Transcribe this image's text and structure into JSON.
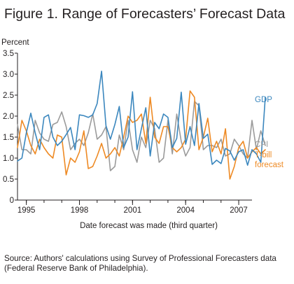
{
  "figure": {
    "title": "Figure 1. Range of Forecasters’ Forecast Data",
    "source": "Source: Authors' calculations using Survey of Professional Forecasters data (Federal Reserve Bank of Philadelphia)."
  },
  "chart_data": {
    "type": "line",
    "ylabel": "Percent",
    "xlabel": "Date forecast was made (third quarter)",
    "ylim": [
      0,
      3.5
    ],
    "yticks": [
      "0",
      "0.5",
      "1.0",
      "1.5",
      "2.0",
      "2.5",
      "3.0",
      "3.5"
    ],
    "xlim": [
      1994.5,
      2007.75
    ],
    "xticks": [
      "1995",
      "1998",
      "2001",
      "2004",
      "2007"
    ],
    "grid": false,
    "legend": "labels at line ends, right",
    "series": [
      {
        "name": "GDP",
        "label_lines": [
          "GDP"
        ],
        "color": "#3b87be",
        "x_start": 1994.5,
        "x_step": 0.25,
        "values": [
          0.93,
          1.0,
          1.6,
          2.07,
          1.6,
          1.2,
          1.97,
          2.03,
          1.5,
          1.3,
          1.4,
          1.56,
          1.73,
          1.2,
          2.03,
          2.01,
          1.97,
          2.03,
          2.3,
          3.07,
          1.77,
          1.45,
          1.8,
          2.23,
          1.25,
          1.5,
          2.58,
          1.2,
          1.7,
          2.2,
          1.05,
          1.85,
          1.7,
          2.05,
          1.97,
          1.25,
          1.47,
          2.57,
          1.33,
          1.75,
          1.3,
          2.3,
          1.47,
          1.57,
          0.85,
          0.95,
          0.87,
          1.23,
          1.17,
          0.95,
          1.15,
          1.2,
          0.83,
          1.2,
          1.1,
          0.9,
          2.45
        ]
      },
      {
        "name": "CPI",
        "label_lines": [
          "CPI"
        ],
        "color": "#9b9b9b",
        "x_start": 1994.5,
        "x_step": 0.25,
        "values": [
          1.8,
          1.2,
          1.2,
          1.1,
          1.9,
          1.6,
          1.45,
          1.4,
          1.8,
          1.85,
          2.1,
          1.75,
          1.2,
          1.35,
          1.45,
          1.3,
          1.6,
          2.05,
          1.45,
          1.55,
          1.75,
          0.7,
          0.8,
          1.55,
          1.2,
          1.9,
          1.2,
          0.9,
          1.5,
          1.25,
          1.9,
          1.7,
          0.9,
          1.0,
          1.9,
          1.1,
          2.05,
          1.4,
          1.05,
          1.25,
          2.35,
          2.25,
          1.2,
          1.3,
          1.3,
          1.25,
          1.45,
          1.05,
          1.1,
          1.45,
          1.3,
          1.1,
          1.0,
          1.9,
          1.2,
          1.65,
          1.3
        ]
      },
      {
        "name": "T-bill forecast",
        "label_lines": [
          "T-bill",
          "forecast"
        ],
        "color": "#ee8a24",
        "x_start": 1994.5,
        "x_step": 0.25,
        "values": [
          1.25,
          1.9,
          1.65,
          1.3,
          1.1,
          1.45,
          1.25,
          1.1,
          1.0,
          1.55,
          1.5,
          0.6,
          1.0,
          0.9,
          1.15,
          1.65,
          0.75,
          0.8,
          1.05,
          1.35,
          1.0,
          1.1,
          1.25,
          1.05,
          1.5,
          2.0,
          1.85,
          1.9,
          2.05,
          1.35,
          2.45,
          1.5,
          1.35,
          1.75,
          1.75,
          1.25,
          1.15,
          1.25,
          1.45,
          2.6,
          2.45,
          1.2,
          1.5,
          1.95,
          1.15,
          1.4,
          1.1,
          1.7,
          0.5,
          0.8,
          1.25,
          1.4,
          1.0,
          1.15,
          1.25,
          1.1,
          1.2
        ]
      }
    ]
  }
}
